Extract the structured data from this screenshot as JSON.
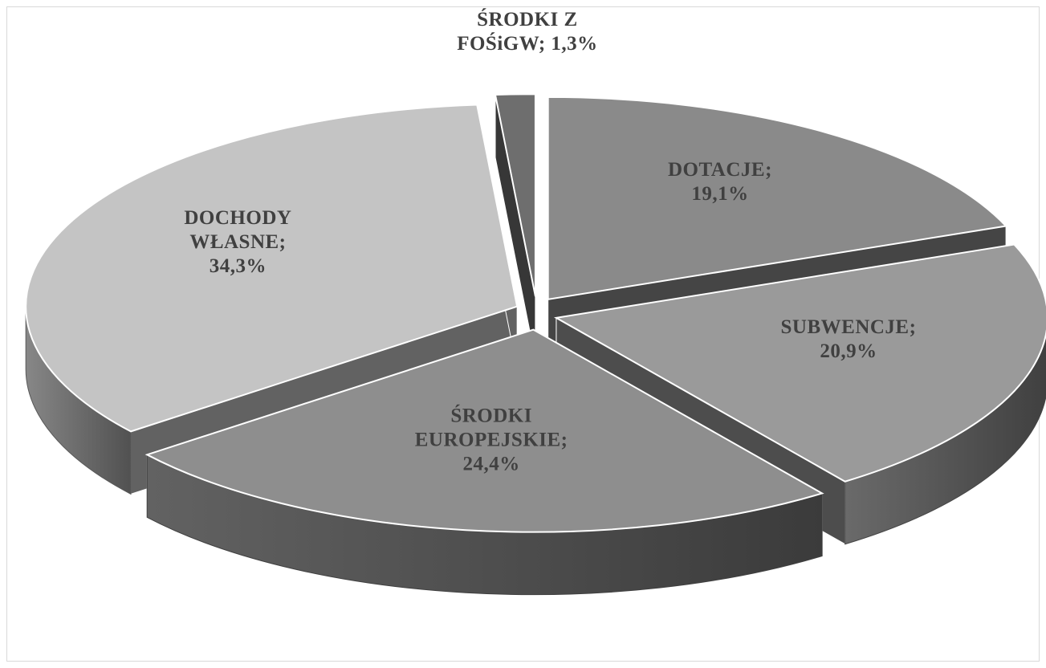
{
  "chart_data": {
    "type": "pie",
    "title": "",
    "style": "3d-exploded",
    "slices": [
      {
        "label_lines": [
          "DOTACJE;",
          "19,1%"
        ],
        "name": "DOTACJE",
        "value": 19.1,
        "color": "#8a8a8a"
      },
      {
        "label_lines": [
          "SUBWENCJE;",
          "20,9%"
        ],
        "name": "SUBWENCJE",
        "value": 20.9,
        "color": "#9a9a9a"
      },
      {
        "label_lines": [
          "ŚRODKI",
          "EUROPEJSKIE;",
          "24,4%"
        ],
        "name": "ŚRODKI EUROPEJSKIE",
        "value": 24.4,
        "color": "#8e8e8e"
      },
      {
        "label_lines": [
          "DOCHODY",
          "WŁASNE;",
          "34,3%"
        ],
        "name": "DOCHODY WŁASNE",
        "value": 34.3,
        "color": "#c4c4c4"
      },
      {
        "label_lines": [
          "ŚRODKI Z",
          "FOŚiGW; 1,3%"
        ],
        "name": "ŚRODKI Z FOŚiGW",
        "value": 1.3,
        "color": "#6e6e6e"
      }
    ]
  }
}
